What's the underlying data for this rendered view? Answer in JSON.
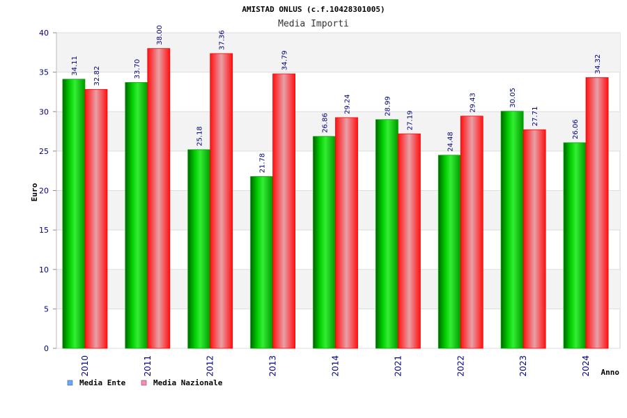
{
  "chart_data": {
    "type": "bar",
    "title": "AMISTAD ONLUS (c.f.10428301005)",
    "subtitle": "Media Importi",
    "xlabel": "Anno",
    "ylabel": "Euro",
    "ylim": [
      0,
      40
    ],
    "yticks": [
      0,
      5,
      10,
      15,
      20,
      25,
      30,
      35,
      40
    ],
    "categories": [
      "2010",
      "2011",
      "2012",
      "2013",
      "2014",
      "2021",
      "2022",
      "2023",
      "2024"
    ],
    "series": [
      {
        "name": "Media Ente",
        "values": [
          34.11,
          33.7,
          25.18,
          21.78,
          26.86,
          28.99,
          24.48,
          30.05,
          26.06
        ],
        "labels": [
          "34.11",
          "33.70",
          "25.18",
          "21.78",
          "26.86",
          "28.99",
          "24.48",
          "30.05",
          "26.06"
        ],
        "color": "#00c000"
      },
      {
        "name": "Media Nazionale",
        "values": [
          32.82,
          38.0,
          37.36,
          34.79,
          29.24,
          27.19,
          29.43,
          27.71,
          34.32
        ],
        "labels": [
          "32.82",
          "38.00",
          "37.36",
          "34.79",
          "29.24",
          "27.19",
          "29.43",
          "27.71",
          "34.32"
        ],
        "color": "#ff0000"
      }
    ],
    "legend": {
      "position": "bottom-left",
      "colors": [
        "#66aaff",
        "#ff88bb"
      ]
    },
    "grid": true
  }
}
